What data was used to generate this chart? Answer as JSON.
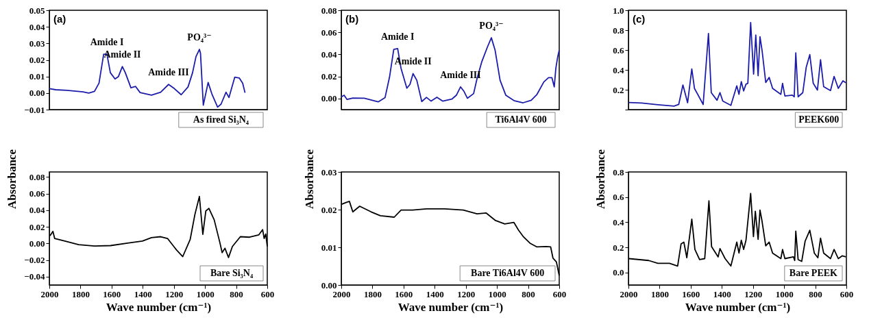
{
  "chart_data": [
    {
      "type": "line",
      "xlim": [
        2000,
        600
      ],
      "xticks": [
        2000,
        1800,
        1600,
        1400,
        1200,
        1000,
        800,
        600
      ],
      "ylim": [
        -0.01,
        0.05
      ],
      "yticks": [
        {
          "value": -0.01,
          "label": "−0.01"
        },
        {
          "value": 0,
          "label": "0.00"
        },
        {
          "value": 0.01,
          "label": "0.01"
        },
        {
          "value": 0.02,
          "label": "0.02"
        },
        {
          "value": 0.03,
          "label": "0.03"
        },
        {
          "value": 0.04,
          "label": "0.04"
        },
        {
          "value": 0.05,
          "label": "0.05"
        }
      ],
      "tick_labels": "y",
      "legend": "bottom right",
      "annotations": [
        "(a)",
        {
          "text": "Amide I",
          "x": 1630,
          "y": 0.0235
        },
        {
          "text": "Amide II",
          "x": 1531,
          "y": 0.016
        },
        {
          "text": "Amide III",
          "x": 1234,
          "y": 0.0052
        },
        {
          "text": "PO₄³⁻",
          "x": 1036,
          "y": 0.0264
        }
      ],
      "series": [
        {
          "name": "As fired Si₃N₄",
          "color": "#1c1caa",
          "x": [
            2000,
            1959,
            1886,
            1783,
            1747,
            1710,
            1681,
            1651,
            1630,
            1608,
            1578,
            1556,
            1531,
            1512,
            1476,
            1446,
            1417,
            1344,
            1285,
            1234,
            1197,
            1153,
            1109,
            1080,
            1058,
            1036,
            1029,
            1011,
            980,
            956,
            919,
            897,
            865,
            846,
            809,
            780,
            758,
            743
          ],
          "values": [
            0.0027,
            0.002,
            0.0016,
            0.0007,
            0.0,
            0.001,
            0.006,
            0.0235,
            0.0235,
            0.0123,
            0.0085,
            0.01,
            0.016,
            0.0123,
            0.0032,
            0.004,
            0.0003,
            -0.0013,
            0.0005,
            0.0052,
            0.0027,
            -0.001,
            0.0037,
            0.0123,
            0.022,
            0.0264,
            0.024,
            -0.0073,
            0.0064,
            -0.0005,
            -0.0085,
            -0.0067,
            0.0005,
            -0.0027,
            0.0096,
            0.0091,
            0.0059,
            0.0002
          ]
        }
      ]
    },
    {
      "type": "line",
      "xlim": [
        2000,
        600
      ],
      "xticks": [
        2000,
        1800,
        1600,
        1400,
        1200,
        1000,
        800,
        600
      ],
      "ylim": [
        -0.05,
        0.086
      ],
      "yticks": [
        {
          "value": -0.04,
          "label": "−0.04"
        },
        {
          "value": -0.02,
          "label": "−0.02"
        },
        {
          "value": 0,
          "label": "0.00"
        },
        {
          "value": 0.02,
          "label": "0.02"
        },
        {
          "value": 0.04,
          "label": "0.04"
        },
        {
          "value": 0.06,
          "label": "0.06"
        },
        {
          "value": 0.08,
          "label": "0.08"
        }
      ],
      "legend": "bottom right",
      "xlabel": "Wave number (cm⁻¹)",
      "ylabel": "Absorbance",
      "series": [
        {
          "name": "Bare Si₃N₄",
          "color": "#000000",
          "x": [
            1996,
            1977,
            1966,
            1900,
            1812,
            1710,
            1607,
            1490,
            1402,
            1344,
            1285,
            1241,
            1183,
            1143,
            1095,
            1065,
            1036,
            1014,
            995,
            975,
            941,
            904,
            890,
            872,
            849,
            824,
            773,
            714,
            655,
            630,
            620,
            610,
            600
          ],
          "values": [
            0.0092,
            0.0145,
            0.006,
            0.0028,
            -0.0015,
            -0.0032,
            -0.0026,
            0.0006,
            0.0028,
            0.007,
            0.0081,
            0.006,
            -0.0079,
            -0.0158,
            0.005,
            0.0348,
            0.0565,
            0.0109,
            0.039,
            0.0422,
            0.0284,
            0.0006,
            -0.0111,
            -0.0058,
            -0.0169,
            -0.0036,
            0.0081,
            0.0075,
            0.0102,
            0.0166,
            0.006,
            0.0113,
            -0.0036
          ]
        }
      ]
    },
    {
      "type": "line",
      "xlim": [
        2000,
        600
      ],
      "xticks": [
        2000,
        1800,
        1600,
        1400,
        1200,
        1000,
        800,
        600
      ],
      "ylim": [
        -0.01,
        0.08
      ],
      "yticks": [
        {
          "value": 0,
          "label": "0.00"
        },
        {
          "value": 0.02,
          "label": "0.02"
        },
        {
          "value": 0.04,
          "label": "0.04"
        },
        {
          "value": 0.06,
          "label": "0.06"
        },
        {
          "value": 0.08,
          "label": "0.08"
        }
      ],
      "tick_labels": "y",
      "legend": "bottom right",
      "annotations": [
        "(b)",
        {
          "text": "Amide I",
          "x": 1638,
          "y": 0.0453
        },
        {
          "text": "Amide II",
          "x": 1539,
          "y": 0.0226
        },
        {
          "text": "Amide III",
          "x": 1234,
          "y": 0.0106
        },
        {
          "text": "PO₄³⁻",
          "x": 1036,
          "y": 0.0551
        }
      ],
      "series": [
        {
          "name": "Ti6Al4V 600",
          "color": "#1c1caa",
          "x": [
            2000,
            1982,
            1963,
            1926,
            1852,
            1763,
            1719,
            1690,
            1663,
            1638,
            1616,
            1579,
            1559,
            1539,
            1515,
            1483,
            1453,
            1423,
            1386,
            1349,
            1290,
            1261,
            1234,
            1213,
            1190,
            1150,
            1128,
            1098,
            1061,
            1036,
            1012,
            980,
            943,
            891,
            832,
            780,
            743,
            699,
            669,
            647,
            632,
            622,
            610,
            600
          ],
          "values": [
            0.0015,
            0.003,
            -0.0008,
            0.0005,
            0.0003,
            -0.003,
            0.0008,
            0.0196,
            0.0445,
            0.0453,
            0.0272,
            0.0094,
            0.0128,
            0.0226,
            0.0166,
            -0.0027,
            0.0011,
            -0.0023,
            0.0012,
            -0.0023,
            -0.0005,
            0.003,
            0.0106,
            0.0068,
            0.0003,
            0.0045,
            0.0181,
            0.0332,
            0.0468,
            0.0551,
            0.0438,
            0.0166,
            0.003,
            -0.0018,
            -0.0038,
            -0.0015,
            0.0038,
            0.0151,
            0.0189,
            0.0189,
            0.0106,
            0.0272,
            0.0377,
            0.0438
          ]
        }
      ]
    },
    {
      "type": "line",
      "xlim": [
        2000,
        600
      ],
      "xticks": [
        2000,
        1800,
        1600,
        1400,
        1200,
        1000,
        800,
        600
      ],
      "ylim": [
        0,
        0.03
      ],
      "yticks": [
        {
          "value": 0,
          "label": "0.00"
        },
        {
          "value": 0.01,
          "label": "0.01"
        },
        {
          "value": 0.02,
          "label": "0.02"
        },
        {
          "value": 0.03,
          "label": "0.03"
        }
      ],
      "legend": "bottom right",
      "xlabel": "Wave number (cm⁻¹)",
      "ylabel": "Absorbance",
      "series": [
        {
          "name": "Bare Ti6Al4V 600",
          "color": "#000000",
          "x": [
            2000,
            1970,
            1948,
            1926,
            1882,
            1808,
            1749,
            1660,
            1616,
            1542,
            1453,
            1335,
            1216,
            1128,
            1069,
            1009,
            950,
            891,
            862,
            832,
            788,
            743,
            684,
            655,
            640,
            618,
            600
          ],
          "values": [
            0.0214,
            0.0219,
            0.0222,
            0.0194,
            0.0209,
            0.0194,
            0.0184,
            0.018,
            0.0199,
            0.0199,
            0.0202,
            0.0202,
            0.0199,
            0.0189,
            0.0191,
            0.0171,
            0.0162,
            0.0166,
            0.0146,
            0.0129,
            0.0111,
            0.0101,
            0.0102,
            0.0101,
            0.0071,
            0.0061,
            0.0025
          ]
        }
      ]
    },
    {
      "type": "line",
      "xlim": [
        2000,
        600
      ],
      "xticks": [
        2000,
        1800,
        1600,
        1400,
        1200,
        1000,
        800,
        600
      ],
      "ylim": [
        0,
        1.0
      ],
      "yticks": [
        {
          "value": 0,
          "label": null
        },
        {
          "value": 0.2,
          "label": "0.2"
        },
        {
          "value": 0.4,
          "label": "0.4"
        },
        {
          "value": 0.6,
          "label": "0.6"
        },
        {
          "value": 0.8,
          "label": "0.8"
        },
        {
          "value": 1.0,
          "label": "1.0"
        }
      ],
      "tick_labels": "y",
      "legend": "bottom right",
      "annotations": [
        "(c)"
      ],
      "series": [
        {
          "name": "PEEK600",
          "color": "#1c1caa",
          "x": [
            1997,
            1915,
            1811,
            1707,
            1677,
            1650,
            1620,
            1593,
            1576,
            1520,
            1486,
            1468,
            1431,
            1412,
            1394,
            1342,
            1304,
            1290,
            1275,
            1260,
            1245,
            1233,
            1215,
            1196,
            1182,
            1167,
            1155,
            1141,
            1118,
            1096,
            1074,
            1021,
            1010,
            995,
            947,
            935,
            925,
            910,
            880,
            858,
            835,
            813,
            786,
            766,
            746,
            702,
            679,
            652,
            622,
            604
          ],
          "values": [
            0.072,
            0.066,
            0.049,
            0.035,
            0.052,
            0.248,
            0.069,
            0.409,
            0.214,
            0.052,
            0.767,
            0.171,
            0.094,
            0.171,
            0.086,
            0.043,
            0.239,
            0.154,
            0.282,
            0.188,
            0.256,
            0.265,
            0.877,
            0.358,
            0.75,
            0.341,
            0.733,
            0.588,
            0.273,
            0.324,
            0.214,
            0.154,
            0.265,
            0.137,
            0.146,
            0.129,
            0.571,
            0.129,
            0.171,
            0.426,
            0.554,
            0.265,
            0.197,
            0.503,
            0.231,
            0.192,
            0.334,
            0.214,
            0.29,
            0.27
          ]
        }
      ]
    },
    {
      "type": "line",
      "xlim": [
        2000,
        600
      ],
      "xticks": [
        2000,
        1800,
        1600,
        1400,
        1200,
        1000,
        800,
        600
      ],
      "ylim": [
        -0.1,
        0.8
      ],
      "yticks": [
        {
          "value": 0,
          "label": "0.0"
        },
        {
          "value": 0.2,
          "label": "0.2"
        },
        {
          "value": 0.4,
          "label": "0.4"
        },
        {
          "value": 0.6,
          "label": "0.6"
        },
        {
          "value": 0.8,
          "label": "0.8"
        }
      ],
      "legend": "bottom right",
      "xlabel": "Wave number (cm⁻¹)",
      "ylabel": "Absorbance",
      "series": [
        {
          "name": "Bare PEEK",
          "color": "#000000",
          "x": [
            1997,
            1870,
            1811,
            1736,
            1684,
            1662,
            1644,
            1625,
            1593,
            1573,
            1543,
            1510,
            1483,
            1466,
            1424,
            1412,
            1379,
            1342,
            1304,
            1290,
            1275,
            1260,
            1245,
            1215,
            1197,
            1185,
            1167,
            1155,
            1143,
            1118,
            1096,
            1074,
            1021,
            1010,
            995,
            940,
            932,
            925,
            910,
            887,
            865,
            835,
            806,
            783,
            766,
            746,
            702,
            679,
            652,
            627,
            604
          ],
          "values": [
            0.11,
            0.095,
            0.073,
            0.073,
            0.051,
            0.227,
            0.241,
            0.117,
            0.424,
            0.183,
            0.102,
            0.11,
            0.57,
            0.205,
            0.124,
            0.19,
            0.11,
            0.051,
            0.241,
            0.154,
            0.256,
            0.183,
            0.256,
            0.629,
            0.285,
            0.487,
            0.263,
            0.497,
            0.417,
            0.212,
            0.241,
            0.154,
            0.11,
            0.183,
            0.11,
            0.124,
            0.095,
            0.329,
            0.102,
            0.088,
            0.249,
            0.336,
            0.154,
            0.117,
            0.273,
            0.154,
            0.11,
            0.183,
            0.11,
            0.132,
            0.124
          ]
        }
      ]
    }
  ]
}
